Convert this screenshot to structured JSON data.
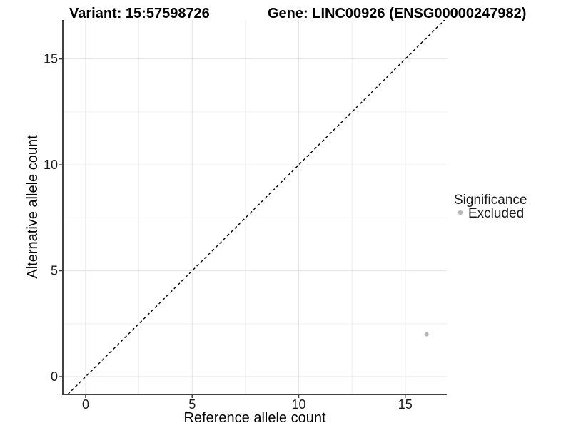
{
  "chart_data": {
    "type": "scatter",
    "title_left": "Variant: 15:57598726",
    "title_right": "Gene: LINC00926 (ENSG00000247982)",
    "xlabel": "Reference allele count",
    "ylabel": "Alternative allele count",
    "xlim": [
      -1.07,
      16.95
    ],
    "ylim": [
      -0.84,
      16.84
    ],
    "x_ticks": [
      0,
      5,
      10,
      15
    ],
    "y_ticks": [
      0,
      5,
      10,
      15
    ],
    "x_minor_ticks": [
      2.5,
      7.5,
      12.5
    ],
    "y_minor_ticks": [
      2.5,
      7.5,
      12.5
    ],
    "grid": "on",
    "reference_line": {
      "kind": "identity y=x",
      "style": "dashed",
      "color": "#000000"
    },
    "series": [
      {
        "name": "Excluded",
        "color": "#b5b5b5",
        "points": [
          {
            "x": 16,
            "y": 2
          }
        ]
      }
    ],
    "legend": {
      "title": "Significance",
      "position": "right",
      "entries": [
        {
          "label": "Excluded",
          "color": "#b5b5b5"
        }
      ]
    },
    "colors": {
      "major_grid": "#e3e3e3",
      "minor_grid": "#efefef",
      "axis_line": "#404040",
      "tick_mark": "#404040"
    }
  }
}
